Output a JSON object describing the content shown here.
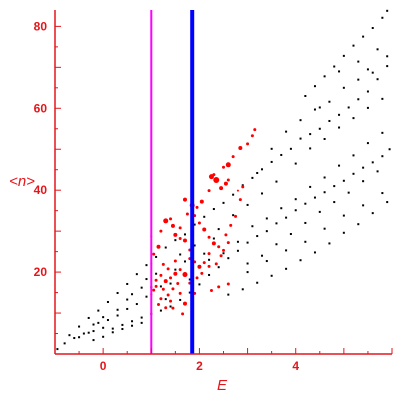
{
  "chart_data": {
    "type": "scatter",
    "title": "",
    "xlabel": "E",
    "ylabel": "<n>",
    "xlim": [
      -1,
      6
    ],
    "ylim": [
      0,
      84
    ],
    "x_ticks": [
      0,
      2,
      4
    ],
    "y_ticks": [
      20,
      40,
      60,
      80
    ],
    "grid": false,
    "axis_color": "#e4161b",
    "series": [
      {
        "style": "small black dots",
        "color": "#000000",
        "points": [
          [
            -0.95,
            1.2
          ],
          [
            -0.8,
            2.6
          ],
          [
            -0.6,
            3.9
          ],
          [
            -0.4,
            5.0
          ],
          [
            -0.2,
            5.6
          ],
          [
            0.0,
            6.4
          ],
          [
            0.2,
            6.2
          ],
          [
            0.4,
            7.1
          ],
          [
            0.6,
            8.0
          ],
          [
            0.8,
            8.9
          ],
          [
            1.0,
            9.8
          ],
          [
            1.2,
            10.6
          ],
          [
            1.4,
            11.6
          ],
          [
            1.6,
            13.2
          ],
          [
            1.8,
            15.0
          ],
          [
            2.0,
            17.0
          ],
          [
            2.2,
            19.3
          ],
          [
            2.4,
            21.2
          ],
          [
            2.6,
            23.4
          ],
          [
            2.8,
            25.2
          ],
          [
            3.0,
            27.2
          ],
          [
            3.2,
            28.8
          ],
          [
            3.4,
            30.0
          ],
          [
            3.6,
            31.9
          ],
          [
            3.8,
            33.3
          ],
          [
            4.0,
            35.1
          ],
          [
            4.2,
            36.7
          ],
          [
            4.4,
            38.2
          ],
          [
            4.6,
            39.5
          ],
          [
            4.8,
            41.0
          ],
          [
            5.0,
            42.3
          ],
          [
            5.2,
            44.0
          ],
          [
            5.4,
            45.5
          ],
          [
            5.6,
            46.8
          ],
          [
            5.8,
            48.3
          ],
          [
            5.95,
            50.0
          ],
          [
            -0.7,
            4.6
          ],
          [
            -0.5,
            6.7
          ],
          [
            -0.3,
            8.8
          ],
          [
            -0.1,
            10.6
          ],
          [
            0.1,
            12.7
          ],
          [
            0.3,
            14.9
          ],
          [
            0.5,
            17.1
          ],
          [
            0.7,
            19.5
          ],
          [
            0.9,
            21.7
          ],
          [
            1.1,
            23.7
          ],
          [
            1.3,
            26.0
          ],
          [
            1.5,
            27.8
          ],
          [
            1.7,
            29.2
          ],
          [
            1.9,
            31.6
          ],
          [
            2.1,
            33.5
          ],
          [
            2.3,
            35.4
          ],
          [
            2.5,
            36.9
          ],
          [
            2.7,
            38.9
          ],
          [
            2.9,
            41.2
          ],
          [
            3.1,
            43.0
          ],
          [
            3.3,
            45.1
          ],
          [
            3.5,
            46.9
          ],
          [
            3.7,
            48.6
          ],
          [
            3.9,
            50.1
          ],
          [
            4.1,
            52.6
          ],
          [
            4.3,
            53.7
          ],
          [
            4.5,
            55.0
          ],
          [
            4.7,
            56.9
          ],
          [
            4.9,
            58.4
          ],
          [
            5.1,
            60.2
          ],
          [
            5.3,
            62.2
          ],
          [
            5.5,
            64.1
          ],
          [
            5.7,
            67.1
          ],
          [
            5.9,
            70.3
          ],
          [
            4.2,
            63.0
          ],
          [
            4.4,
            65.4
          ],
          [
            4.6,
            67.8
          ],
          [
            4.8,
            70.2
          ],
          [
            5.0,
            72.8
          ],
          [
            5.2,
            75.3
          ],
          [
            5.4,
            77.5
          ],
          [
            5.6,
            79.6
          ],
          [
            5.8,
            82.1
          ],
          [
            5.9,
            83.8
          ],
          [
            4.9,
            69.0
          ],
          [
            5.3,
            71.4
          ],
          [
            5.7,
            74.4
          ],
          [
            5.5,
            69.5
          ],
          [
            4.5,
            60.2
          ],
          [
            -0.5,
            4.1
          ],
          [
            -0.3,
            5.2
          ],
          [
            -0.1,
            7.6
          ],
          [
            0.1,
            8.3
          ],
          [
            0.3,
            9.4
          ],
          [
            0.5,
            11.0
          ],
          [
            0.7,
            12.2
          ],
          [
            0.9,
            14.0
          ],
          [
            0.2,
            5.3
          ],
          [
            0.4,
            6.1
          ],
          [
            0.6,
            6.9
          ],
          [
            0.8,
            7.6
          ],
          [
            -0.2,
            3.4
          ],
          [
            0.0,
            4.2
          ],
          [
            0.3,
            10.8
          ],
          [
            0.5,
            13.3
          ],
          [
            0.6,
            14.6
          ],
          [
            0.8,
            16.2
          ],
          [
            0.0,
            9.0
          ],
          [
            -0.2,
            7.2
          ],
          [
            2.2,
            23.0
          ],
          [
            2.5,
            24.6
          ],
          [
            2.8,
            27.4
          ],
          [
            3.1,
            31.2
          ],
          [
            3.4,
            33.1
          ],
          [
            3.7,
            35.6
          ],
          [
            4.0,
            37.8
          ],
          [
            4.3,
            40.8
          ],
          [
            4.6,
            43.1
          ],
          [
            4.9,
            46.0
          ],
          [
            5.2,
            48.5
          ],
          [
            5.5,
            51.5
          ],
          [
            5.8,
            54.0
          ],
          [
            3.0,
            22.1
          ],
          [
            3.3,
            24.0
          ],
          [
            3.6,
            26.8
          ],
          [
            3.9,
            29.3
          ],
          [
            4.2,
            32.0
          ],
          [
            4.5,
            34.7
          ],
          [
            4.8,
            37.1
          ],
          [
            5.1,
            39.4
          ],
          [
            5.4,
            42.2
          ],
          [
            5.7,
            44.6
          ],
          [
            2.6,
            14.5
          ],
          [
            2.9,
            15.8
          ],
          [
            3.2,
            17.4
          ],
          [
            3.5,
            19.1
          ],
          [
            3.8,
            20.8
          ],
          [
            4.1,
            22.9
          ],
          [
            4.4,
            24.8
          ],
          [
            4.7,
            27.0
          ],
          [
            5.0,
            29.6
          ],
          [
            5.3,
            31.7
          ],
          [
            5.6,
            34.4
          ],
          [
            5.9,
            37.1
          ],
          [
            3.0,
            20.0
          ],
          [
            3.4,
            22.7
          ],
          [
            3.8,
            25.3
          ],
          [
            4.2,
            27.4
          ],
          [
            4.6,
            30.6
          ],
          [
            5.0,
            33.8
          ],
          [
            5.4,
            36.3
          ],
          [
            5.8,
            39.3
          ],
          [
            3.2,
            44.2
          ],
          [
            3.5,
            50.1
          ],
          [
            3.8,
            54.3
          ],
          [
            4.1,
            57.1
          ],
          [
            4.4,
            59.7
          ],
          [
            4.7,
            61.6
          ],
          [
            5.0,
            65.0
          ],
          [
            5.3,
            67.0
          ],
          [
            5.6,
            68.7
          ],
          [
            5.9,
            72.7
          ],
          [
            4.0,
            46.5
          ],
          [
            4.3,
            50.2
          ],
          [
            4.6,
            52.5
          ],
          [
            4.9,
            55.3
          ],
          [
            5.2,
            57.6
          ],
          [
            5.5,
            60.1
          ],
          [
            5.8,
            62.3
          ],
          [
            3.6,
            42.1
          ],
          [
            3.3,
            39.2
          ],
          [
            3.0,
            36.4
          ],
          [
            2.7,
            33.9
          ],
          [
            1.1,
            19.6
          ],
          [
            1.2,
            16.5
          ],
          [
            1.3,
            13.4
          ],
          [
            1.4,
            17.2
          ],
          [
            1.5,
            20.6
          ],
          [
            1.6,
            24.3
          ],
          [
            1.7,
            22.6
          ],
          [
            1.8,
            18.2
          ],
          [
            2.0,
            21.1
          ],
          [
            2.1,
            24.5
          ],
          [
            2.3,
            28.2
          ],
          [
            2.4,
            30.5
          ],
          [
            1.9,
            26.5
          ],
          [
            1.0,
            16.3
          ],
          [
            0.9,
            18.3
          ]
        ]
      },
      {
        "style": "red markers, sized by weight",
        "color": "#ff0000",
        "points": [
          [
            1.0,
            28.7,
            2
          ],
          [
            1.2,
            30.0,
            3
          ],
          [
            1.15,
            26.2,
            4
          ],
          [
            1.3,
            32.5,
            5
          ],
          [
            1.4,
            33.0,
            3
          ],
          [
            1.45,
            31.3,
            4
          ],
          [
            1.5,
            29.1,
            4
          ],
          [
            1.6,
            30.8,
            3
          ],
          [
            1.7,
            27.7,
            4
          ],
          [
            1.8,
            25.4,
            3
          ],
          [
            1.7,
            37.7,
            4
          ],
          [
            1.85,
            36.3,
            5
          ],
          [
            1.75,
            34.2,
            3
          ],
          [
            1.9,
            33.8,
            3
          ],
          [
            2.0,
            32.0,
            3
          ],
          [
            2.1,
            30.4,
            4
          ],
          [
            2.2,
            28.5,
            3
          ],
          [
            2.3,
            27.0,
            4
          ],
          [
            2.4,
            26.2,
            3
          ],
          [
            2.2,
            24.5,
            3
          ],
          [
            2.1,
            22.3,
            3
          ],
          [
            2.0,
            21.3,
            4
          ],
          [
            1.9,
            22.5,
            3
          ],
          [
            1.8,
            23.3,
            3
          ],
          [
            1.7,
            19.4,
            5
          ],
          [
            1.6,
            20.6,
            3
          ],
          [
            1.5,
            19.6,
            4
          ],
          [
            1.4,
            18.6,
            3
          ],
          [
            1.3,
            17.8,
            4
          ],
          [
            1.2,
            19.2,
            3
          ],
          [
            1.1,
            18.0,
            3
          ],
          [
            1.25,
            15.8,
            3
          ],
          [
            1.35,
            14.4,
            3
          ],
          [
            1.45,
            15.9,
            3
          ],
          [
            1.55,
            17.2,
            3
          ],
          [
            1.6,
            14.8,
            3
          ],
          [
            1.7,
            12.3,
            4
          ],
          [
            1.65,
            9.8,
            3
          ],
          [
            1.4,
            12.9,
            3
          ],
          [
            1.2,
            13.5,
            3
          ],
          [
            1.1,
            16.5,
            3
          ],
          [
            1.0,
            14.5,
            2
          ],
          [
            1.05,
            15.6,
            3
          ],
          [
            1.15,
            12.1,
            3
          ],
          [
            1.3,
            11.3,
            3
          ],
          [
            1.45,
            11.2,
            3
          ],
          [
            1.8,
            17.3,
            3
          ],
          [
            1.95,
            18.6,
            3
          ],
          [
            2.05,
            19.7,
            3
          ],
          [
            2.2,
            21.4,
            3
          ],
          [
            2.35,
            22.0,
            3
          ],
          [
            2.45,
            24.0,
            3
          ],
          [
            2.5,
            25.3,
            3
          ],
          [
            2.6,
            27.2,
            3
          ],
          [
            2.55,
            29.1,
            3
          ],
          [
            2.65,
            31.4,
            3
          ],
          [
            2.75,
            33.6,
            3
          ],
          [
            2.85,
            37.7,
            3
          ],
          [
            2.8,
            39.9,
            2
          ],
          [
            2.9,
            40.8,
            3
          ],
          [
            2.55,
            41.6,
            4
          ],
          [
            2.6,
            42.5,
            3
          ],
          [
            2.35,
            42.5,
            6
          ],
          [
            2.25,
            43.3,
            5
          ],
          [
            2.45,
            40.5,
            4
          ],
          [
            2.6,
            46.2,
            5
          ],
          [
            2.85,
            50.3,
            4
          ],
          [
            3.0,
            51.3,
            3
          ],
          [
            3.1,
            53.3,
            3
          ],
          [
            3.15,
            54.8,
            3
          ],
          [
            2.7,
            48.2,
            3
          ],
          [
            2.5,
            45.6,
            3
          ],
          [
            2.3,
            43.8,
            3
          ],
          [
            2.2,
            39.9,
            3
          ],
          [
            2.05,
            37.2,
            4
          ],
          [
            1.95,
            35.8,
            3
          ],
          [
            1.6,
            28.2,
            3
          ],
          [
            1.5,
            22.7,
            3
          ],
          [
            1.35,
            20.8,
            3
          ],
          [
            1.25,
            21.9,
            3
          ],
          [
            1.0,
            22.0,
            2
          ],
          [
            1.05,
            24.4,
            3
          ],
          [
            2.4,
            16.4,
            3
          ],
          [
            2.6,
            17.1,
            3
          ],
          [
            2.25,
            15.5,
            3
          ],
          [
            1.9,
            14.8,
            3
          ]
        ]
      }
    ],
    "reference_lines": [
      {
        "axis": "x",
        "value": 1.0,
        "color": "#ff00ff"
      },
      {
        "axis": "x",
        "value": 1.85,
        "color": "#0000ff"
      }
    ]
  }
}
